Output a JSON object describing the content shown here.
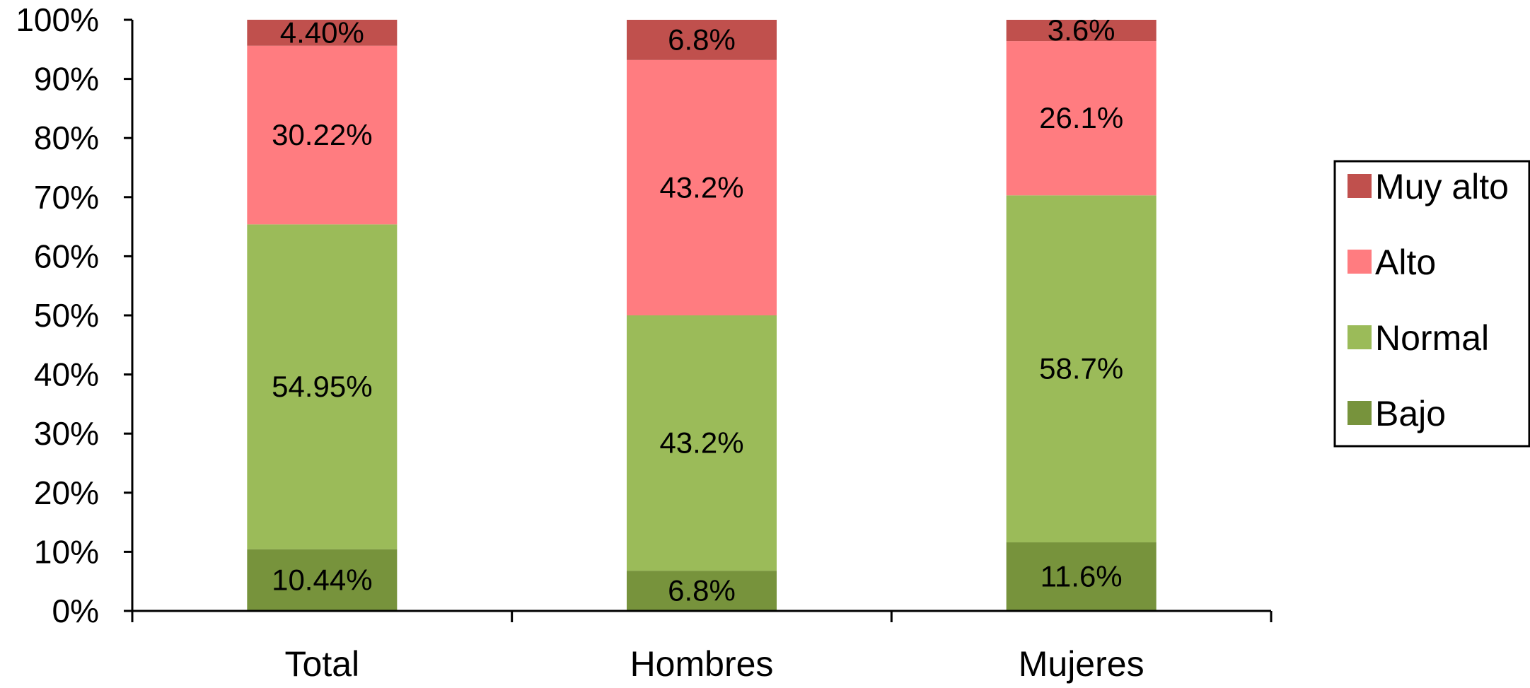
{
  "chart_data": {
    "type": "bar",
    "stacked": true,
    "categories": [
      "Total",
      "Hombres",
      "Mujeres"
    ],
    "series": [
      {
        "name": "Bajo",
        "color": "#77933c",
        "values": [
          10.44,
          6.8,
          11.6
        ],
        "labels": [
          "10.44%",
          "6.8%",
          "11.6%"
        ]
      },
      {
        "name": "Normal",
        "color": "#9bbb59",
        "values": [
          54.95,
          43.2,
          58.7
        ],
        "labels": [
          "54.95%",
          "43.2%",
          "58.7%"
        ]
      },
      {
        "name": "Alto",
        "color": "#ff7c80",
        "values": [
          30.22,
          43.2,
          26.1
        ],
        "labels": [
          "30.22%",
          "43.2%",
          "26.1%"
        ]
      },
      {
        "name": "Muy alto",
        "color": "#c0504d",
        "values": [
          4.4,
          6.8,
          3.6
        ],
        "labels": [
          "4.40%",
          "6.8%",
          "3.6%"
        ]
      }
    ],
    "ylim": [
      0,
      100
    ],
    "yticks": [
      "0%",
      "10%",
      "20%",
      "30%",
      "40%",
      "50%",
      "60%",
      "70%",
      "80%",
      "90%",
      "100%"
    ],
    "legend_position": "right",
    "legend_order": [
      "Muy alto",
      "Alto",
      "Normal",
      "Bajo"
    ],
    "grid": false
  }
}
